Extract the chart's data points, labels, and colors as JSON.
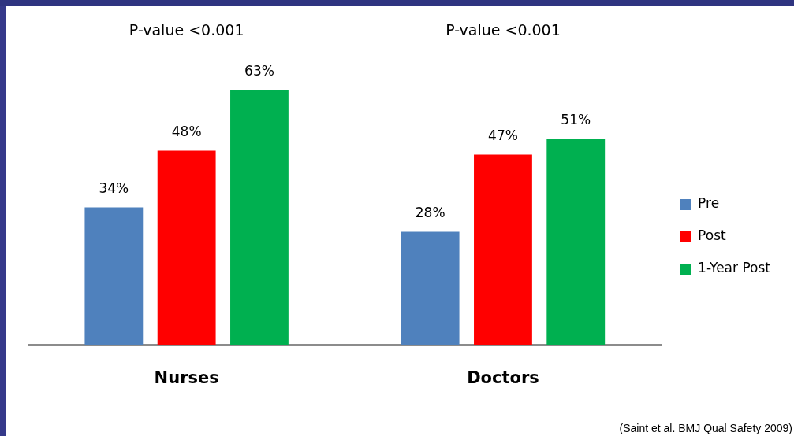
{
  "chart_data": {
    "type": "bar",
    "categories": [
      "Nurses",
      "Doctors"
    ],
    "series": [
      {
        "name": "Pre",
        "color": "#4f81bd",
        "values": [
          34,
          28
        ],
        "value_labels": [
          "34%",
          "28%"
        ]
      },
      {
        "name": "Post",
        "color": "#ff0000",
        "values": [
          48,
          47
        ],
        "value_labels": [
          "48%",
          "47%"
        ]
      },
      {
        "name": "1-Year Post",
        "color": "#00b050",
        "values": [
          63,
          51
        ],
        "value_labels": [
          "63%",
          "51%"
        ]
      }
    ],
    "annotations": [
      "P-value <0.001",
      "P-value <0.001",
      "(Saint et al. BMJ Qual Safety 2009)"
    ],
    "legend": "right",
    "grid": false
  }
}
